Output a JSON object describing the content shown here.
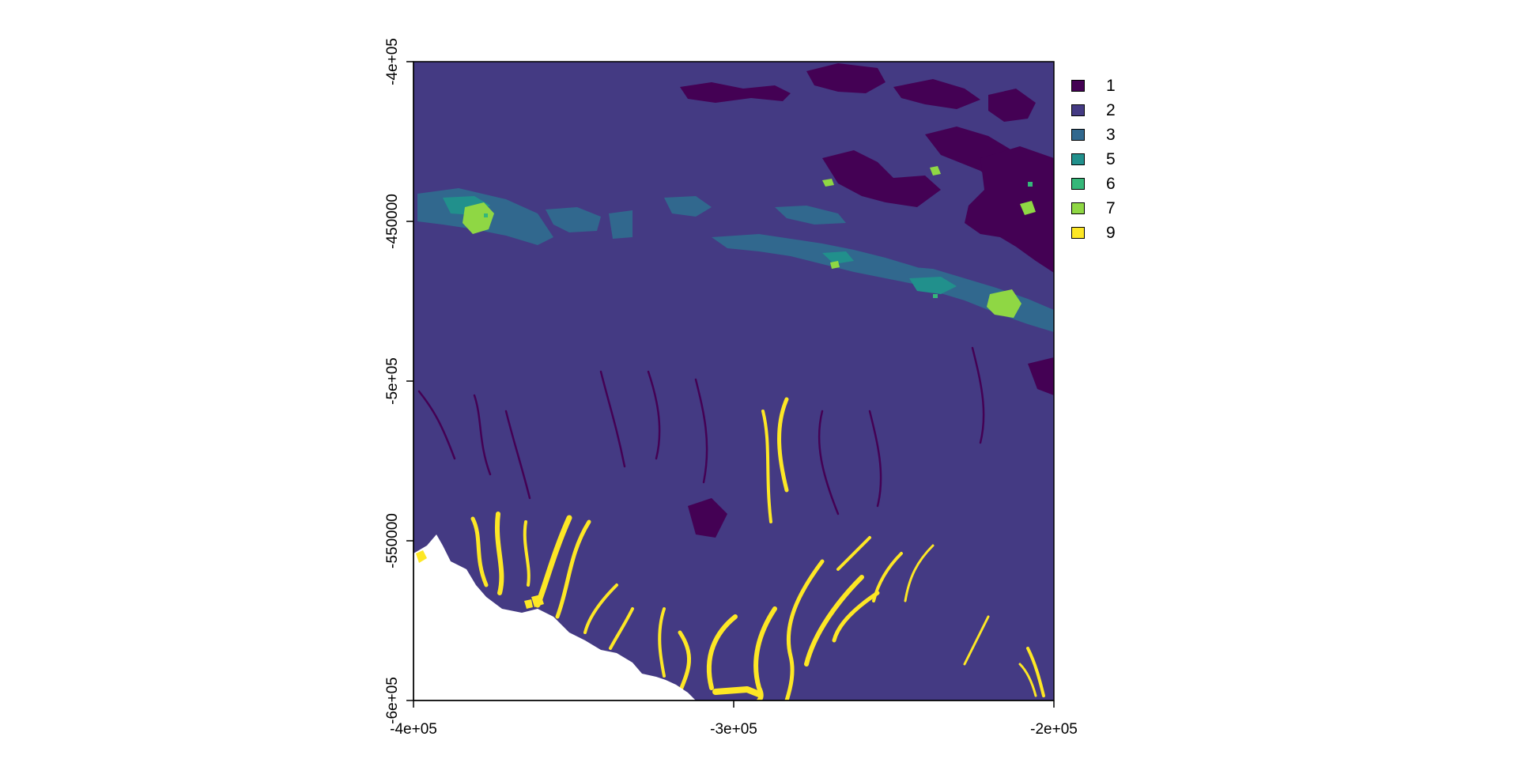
{
  "map": {
    "x_ticks": [
      "-4e+05",
      "-3e+05",
      "-2e+05"
    ],
    "y_ticks": [
      "-4e+05",
      "-450000",
      "-5e+05",
      "-550000",
      "-6e+05"
    ],
    "extent": {
      "xmin": -400000,
      "xmax": -200000,
      "ymin": -600000,
      "ymax": -400000
    },
    "colors": {
      "1": "#440154",
      "2": "#443A83",
      "3": "#31688E",
      "5": "#21908C",
      "6": "#35B779",
      "7": "#8FD744",
      "9": "#FDE725",
      "nodata": "#FFFFFF"
    }
  },
  "legend": [
    {
      "label": "1",
      "color": "#440154"
    },
    {
      "label": "2",
      "color": "#443A83"
    },
    {
      "label": "3",
      "color": "#31688E"
    },
    {
      "label": "5",
      "color": "#21908C"
    },
    {
      "label": "6",
      "color": "#35B779"
    },
    {
      "label": "7",
      "color": "#8FD744"
    },
    {
      "label": "9",
      "color": "#FDE725"
    }
  ]
}
